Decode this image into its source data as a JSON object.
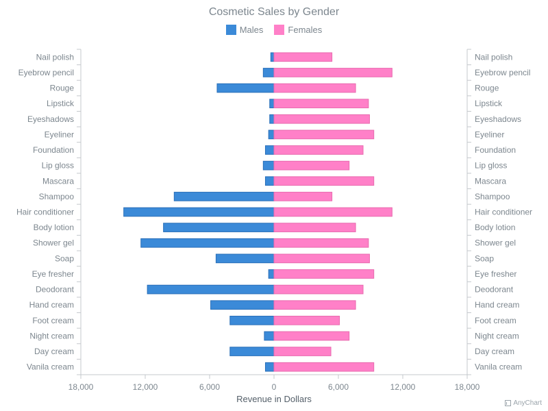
{
  "chart_data": {
    "type": "bar",
    "orientation": "horizontal",
    "layout": "diverging",
    "title": "Cosmetic Sales by Gender",
    "xlabel": "Revenue in Dollars",
    "ylabel": "",
    "xlim": [
      -18000,
      18000
    ],
    "x_ticks": [
      "18,000",
      "12,000",
      "6,000",
      "0",
      "6,000",
      "12,000",
      "18,000"
    ],
    "grid": false,
    "legend_position": "top",
    "categories": [
      "Nail polish",
      "Eyebrow pencil",
      "Rouge",
      "Lipstick",
      "Eyeshadows",
      "Eyeliner",
      "Foundation",
      "Lip gloss",
      "Mascara",
      "Shampoo",
      "Hair conditioner",
      "Body lotion",
      "Shower gel",
      "Soap",
      "Eye fresher",
      "Deodorant",
      "Hand cream",
      "Foot cream",
      "Night cream",
      "Day cream",
      "Vanila cream"
    ],
    "series": [
      {
        "name": "Males",
        "color": "#3b8ad8",
        "stroke": "#2a6fb8",
        "side": "left",
        "values": [
          300,
          1000,
          5300,
          400,
          400,
          500,
          800,
          1000,
          800,
          9300,
          14000,
          10300,
          12400,
          5400,
          500,
          11800,
          5900,
          4100,
          900,
          4100,
          800
        ]
      },
      {
        "name": "Females",
        "color": "#ff80c8",
        "stroke": "#e86aae",
        "side": "right",
        "values": [
          5400,
          11000,
          7600,
          8800,
          8900,
          9300,
          8300,
          7000,
          9300,
          5400,
          11000,
          7600,
          8800,
          8900,
          9300,
          8300,
          7600,
          6100,
          7000,
          5300,
          9300
        ]
      }
    ]
  },
  "credit": {
    "text": "AnyChart",
    "icon": "chart-logo-icon"
  }
}
